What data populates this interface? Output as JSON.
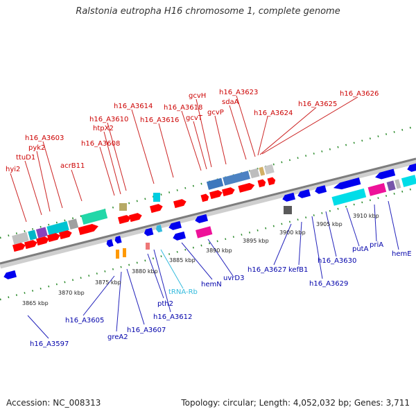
{
  "title": "Ralstonia eutropha H16 chromosome 1, complete genome",
  "footer": {
    "accession": "Accession: NC_008313",
    "topology": "Topology: circular; Length: 4,052,032 bp; Genes: 3,711"
  },
  "colors": {
    "label_top": "#cc0000",
    "label_bottom": "#0000aa",
    "label_trna": "#33bbdd",
    "backbone": "#999999",
    "tick": "#1e7a1e"
  },
  "ruler_labels": [
    "3865 kbp",
    "3870 kbp",
    "3875 kbp",
    "3880 kbp",
    "3885 kbp",
    "3890 kbp",
    "3895 kbp",
    "3900 kbp",
    "3905 kbp",
    "3910 kbp"
  ],
  "top_genes": [
    "hyi2",
    "ttuD1",
    "pyk2",
    "h16_A3603",
    "acrB11",
    "h16_A3608",
    "htpX2",
    "h16_A3610",
    "h16_A3614",
    "h16_A3616",
    "h16_A3618",
    "gcvT",
    "gcvH",
    "gcvP",
    "sdaA",
    "h16_A3623",
    "h16_A3624",
    "h16_A3625",
    "h16_A3626"
  ],
  "bottom_genes": [
    "h16_A3597",
    "h16_A3605",
    "greA2",
    "h16_A3607",
    "pth2",
    "h16_A3612",
    "tRNA-Rb",
    "hemN",
    "uvrD3",
    "h16_A3627",
    "kefB1",
    "h16_A3629",
    "h16_A3630",
    "putA",
    "priA",
    "hemE"
  ]
}
